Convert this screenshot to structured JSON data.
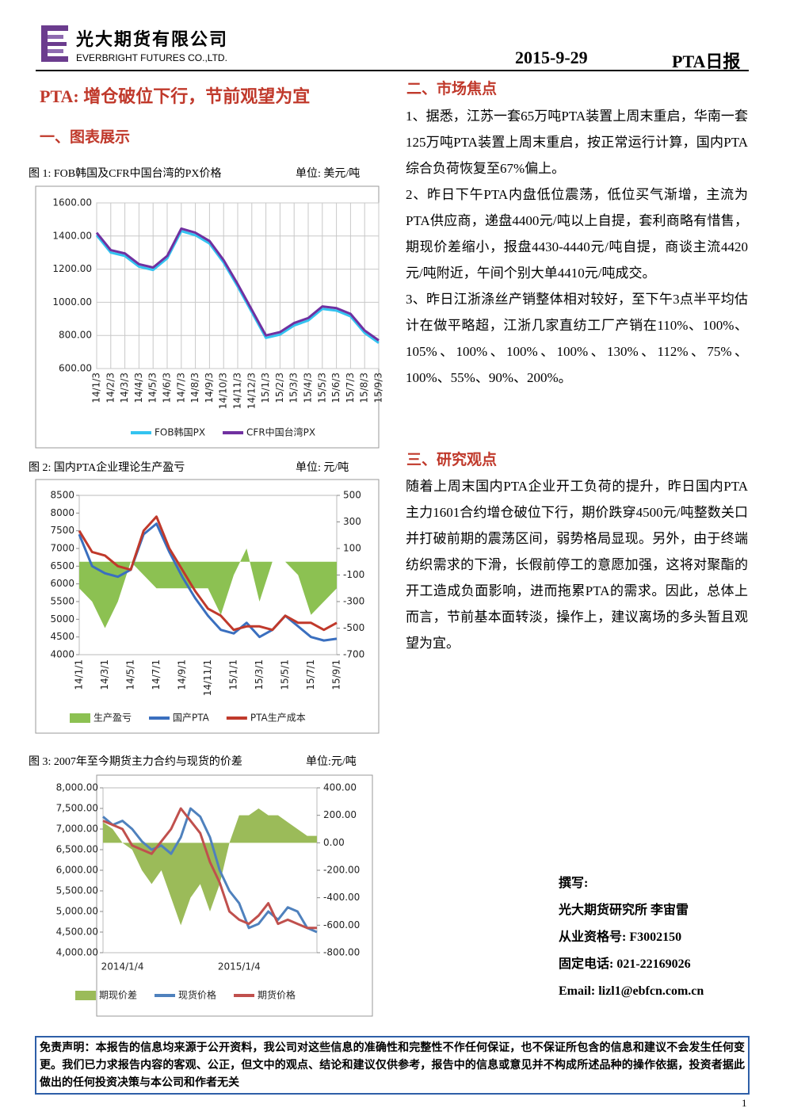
{
  "header": {
    "company_cn": "光大期货有限公司",
    "company_en": "EVERBRIGHT FUTURES CO.,LTD.",
    "date": "2015-9-29",
    "report": "PTA日报"
  },
  "title": "PTA: 增仓破位下行，节前观望为宜",
  "section1": "一、图表展示",
  "chart_data": [
    {
      "type": "line",
      "title": "图 1: FOB韩国及CFR中国台湾的PX价格",
      "unit": "单位: 美元/吨",
      "categories": [
        "14/1/3",
        "14/2/3",
        "14/3/3",
        "14/4/3",
        "14/5/3",
        "14/6/3",
        "14/7/3",
        "14/8/3",
        "14/9/3",
        "14/10/3",
        "14/11/3",
        "14/12/3",
        "15/1/3",
        "15/2/3",
        "15/3/3",
        "15/4/3",
        "15/5/3",
        "15/6/3",
        "15/7/3",
        "15/8/3",
        "15/9/3"
      ],
      "series": [
        {
          "name": "FOB韩国PX",
          "color": "#33c3f0",
          "type": "line",
          "values": [
            1405,
            1300,
            1280,
            1215,
            1195,
            1265,
            1430,
            1405,
            1355,
            1240,
            1095,
            940,
            785,
            805,
            860,
            890,
            960,
            950,
            915,
            815,
            755
          ]
        },
        {
          "name": "CFR中国台湾PX",
          "color": "#7030a0",
          "type": "line",
          "values": [
            1420,
            1315,
            1295,
            1230,
            1210,
            1280,
            1445,
            1420,
            1370,
            1255,
            1110,
            955,
            800,
            820,
            875,
            905,
            975,
            965,
            930,
            830,
            770
          ]
        }
      ],
      "ylim": [
        600,
        1600
      ],
      "yticks": [
        {
          "value": 600,
          "label": "600.00"
        },
        {
          "value": 800,
          "label": "800.00"
        },
        {
          "value": 1000,
          "label": "1000.00"
        },
        {
          "value": 1200,
          "label": "1200.00"
        },
        {
          "value": 1400,
          "label": "1400.00"
        },
        {
          "value": 1600,
          "label": "1600.00"
        }
      ],
      "grid": true,
      "legend": "bottom"
    },
    {
      "type": "combo",
      "title": "图 2: 国内PTA企业理论生产盈亏",
      "unit": "单位: 元/吨",
      "categories": [
        "14/1/1",
        null,
        "14/3/1",
        null,
        "14/5/1",
        null,
        "14/7/1",
        null,
        "14/9/1",
        null,
        "14/11/1",
        null,
        "15/1/1",
        null,
        "15/3/1",
        null,
        "15/5/1",
        null,
        "15/7/1",
        null,
        "15/9/1"
      ],
      "series": [
        {
          "name": "生产盈亏",
          "color": "#8cc152",
          "type": "area",
          "axis": "y2",
          "values": [
            -200,
            -300,
            -500,
            -300,
            0,
            -100,
            -200,
            -200,
            -200,
            -200,
            -200,
            -400,
            -100,
            100,
            -300,
            0,
            0,
            -100,
            -400,
            -300,
            -200
          ]
        },
        {
          "name": "国产PTA",
          "color": "#3a6fbf",
          "type": "line",
          "values": [
            7400,
            6500,
            6300,
            6200,
            6400,
            7400,
            7700,
            6900,
            6200,
            5600,
            5100,
            4700,
            4600,
            4900,
            4500,
            4700,
            5100,
            4800,
            4500,
            4400,
            4450
          ]
        },
        {
          "name": "PTA生产成本",
          "color": "#c0392b",
          "type": "line",
          "values": [
            7500,
            6900,
            6800,
            6500,
            6400,
            7500,
            7900,
            7000,
            6400,
            5800,
            5300,
            5100,
            4700,
            4800,
            4800,
            4700,
            5100,
            4900,
            4900,
            4700,
            4900
          ]
        }
      ],
      "ylim": [
        4000,
        8500
      ],
      "yticks": [
        4000,
        4500,
        5000,
        5500,
        6000,
        6500,
        7000,
        7500,
        8000,
        8500
      ],
      "y2lim": [
        -700,
        500
      ],
      "y2ticks": [
        -700,
        -500,
        -300,
        -100,
        100,
        300,
        500
      ],
      "grid": false,
      "legend": "bottom"
    },
    {
      "type": "combo",
      "title": "图 3: 2007年至今期货主力合约与现货的价差",
      "unit": "单位:元/吨",
      "categories": [
        null,
        null,
        "2014/1/4",
        null,
        null,
        null,
        null,
        null,
        null,
        null,
        null,
        null,
        null,
        null,
        "2015/1/4",
        null,
        null,
        null,
        null,
        null,
        null,
        null,
        null
      ],
      "series": [
        {
          "name": "期现价差",
          "color": "#9bbb59",
          "type": "area",
          "axis": "y2",
          "values": [
            150,
            100,
            0,
            -50,
            -200,
            -300,
            -200,
            -400,
            -600,
            -400,
            -300,
            -500,
            -300,
            0,
            200,
            200,
            250,
            200,
            200,
            150,
            100,
            50,
            50
          ]
        },
        {
          "name": "现货价格",
          "color": "#4f81bd",
          "type": "line",
          "values": [
            7300,
            7100,
            7200,
            7000,
            6700,
            6500,
            6600,
            6400,
            6800,
            7500,
            7300,
            6800,
            6000,
            5500,
            5200,
            4600,
            4700,
            5000,
            4800,
            5100,
            5000,
            4600,
            4500
          ]
        },
        {
          "name": "期货价格",
          "color": "#c0504d",
          "type": "line",
          "values": [
            7200,
            7100,
            7000,
            6600,
            6500,
            6400,
            6700,
            7000,
            7500,
            7200,
            6900,
            6200,
            5700,
            5000,
            4800,
            4700,
            4900,
            5200,
            4700,
            4800,
            4700,
            4600,
            4600
          ]
        }
      ],
      "ylim": [
        4000,
        8000
      ],
      "yticks": [
        {
          "value": 4000,
          "label": "4,000.00"
        },
        {
          "value": 4500,
          "label": "4,500.00"
        },
        {
          "value": 5000,
          "label": "5,000.00"
        },
        {
          "value": 5500,
          "label": "5,500.00"
        },
        {
          "value": 6000,
          "label": "6,000.00"
        },
        {
          "value": 6500,
          "label": "6,500.00"
        },
        {
          "value": 7000,
          "label": "7,000.00"
        },
        {
          "value": 7500,
          "label": "7,500.00"
        },
        {
          "value": 8000,
          "label": "8,000.00"
        }
      ],
      "y2lim": [
        -800,
        400
      ],
      "y2ticks": [
        {
          "value": -800,
          "label": "-800.00"
        },
        {
          "value": -600,
          "label": "-600.00"
        },
        {
          "value": -400,
          "label": "-400.00"
        },
        {
          "value": -200,
          "label": "-200.00"
        },
        {
          "value": 0,
          "label": "0.00"
        },
        {
          "value": 200,
          "label": "200.00"
        },
        {
          "value": 400,
          "label": "400.00"
        }
      ],
      "grid": false,
      "legend": "bottom"
    }
  ],
  "market_focus": {
    "heading": "二、市场焦点",
    "paragraphs": [
      "1、据悉，江苏一套65万吨PTA装置上周末重启，华南一套125万吨PTA装置上周末重启，按正常运行计算，国内PTA综合负荷恢复至67%偏上。",
      "2、昨日下午PTA内盘低位震荡，低位买气渐增，主流为PTA供应商，递盘4400元/吨以上自提，套利商略有惜售，期现价差缩小，报盘4430-4440元/吨自提，商谈主流4420元/吨附近，午间个别大单4410元/吨成交。",
      "3、昨日江浙涤丝产销整体相对较好，至下午3点半平均估计在做平略超，江浙几家直纺工厂产销在110%、100%、105%、100%、100%、100%、130%、112%、75%、100%、55%、90%、200%。"
    ]
  },
  "research": {
    "heading": "三、研究观点",
    "paragraph": "随着上周末国内PTA企业开工负荷的提升，昨日国内PTA主力1601合约增仓破位下行，期价跌穿4500元/吨整数关口并打破前期的震荡区间，弱势格局显现。另外，由于终端纺织需求的下滑，长假前停工的意愿加强，这将对聚酯的开工造成负面影响，进而拖累PTA的需求。因此，总体上而言，节前基本面转淡，操作上，建议离场的多头暂且观望为宜。"
  },
  "author": {
    "label": "撰写:",
    "name": "光大期货研究所 李宙雷",
    "license": "从业资格号: F3002150",
    "phone": "固定电话: 021-22169026",
    "email": "Email: lizl1@ebfcn.com.cn"
  },
  "disclaimer": "免责声明：本报告的信息均来源于公开资料，我公司对这些信息的准确性和完整性不作任何保证，也不保证所包含的信息和建议不会发生任何变更。我们已力求报告内容的客观、公正，但文中的观点、结论和建议仅供参考，报告中的信息或意见并不构成所述品种的操作依据，投资者据此做出的任何投资决策与本公司和作者无关",
  "page_number": "1"
}
